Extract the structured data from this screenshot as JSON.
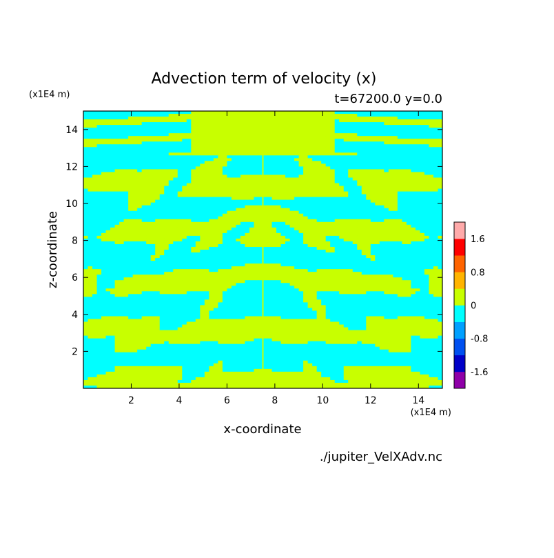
{
  "chart_data": {
    "type": "heatmap",
    "title": "Advection term of velocity (x)",
    "subtitle": "t=67200.0 y=0.0",
    "xlabel": "x-coordinate",
    "ylabel": "z-coordinate",
    "x_unit": "(x1E4 m)",
    "y_unit": "(x1E4 m)",
    "xlim": [
      0,
      15
    ],
    "ylim": [
      0,
      15
    ],
    "x_ticks": [
      "2",
      "4",
      "6",
      "8",
      "10",
      "12",
      "14"
    ],
    "y_ticks": [
      "2",
      "4",
      "6",
      "8",
      "10",
      "12",
      "14"
    ],
    "colorbar": {
      "levels": [
        -2.0,
        -1.6,
        -1.2,
        -0.8,
        -0.4,
        0,
        0.4,
        0.8,
        1.2,
        1.6,
        2.0
      ],
      "labels": [
        "1.6",
        "0.8",
        "0",
        "-0.8",
        "-1.6"
      ],
      "colors": [
        "#8f00a8",
        "#0000c8",
        "#0050f0",
        "#00a0ff",
        "#00ffff",
        "#c8ff00",
        "#ffb400",
        "#ff6400",
        "#ff0000",
        "#ffaaaa"
      ]
    },
    "field_description_colors": {
      "negative_near_zero": "#00ffff",
      "positive_near_zero": "#c8ff00"
    }
  },
  "footer": {
    "filename": "./jupiter_VelXAdv.nc"
  }
}
